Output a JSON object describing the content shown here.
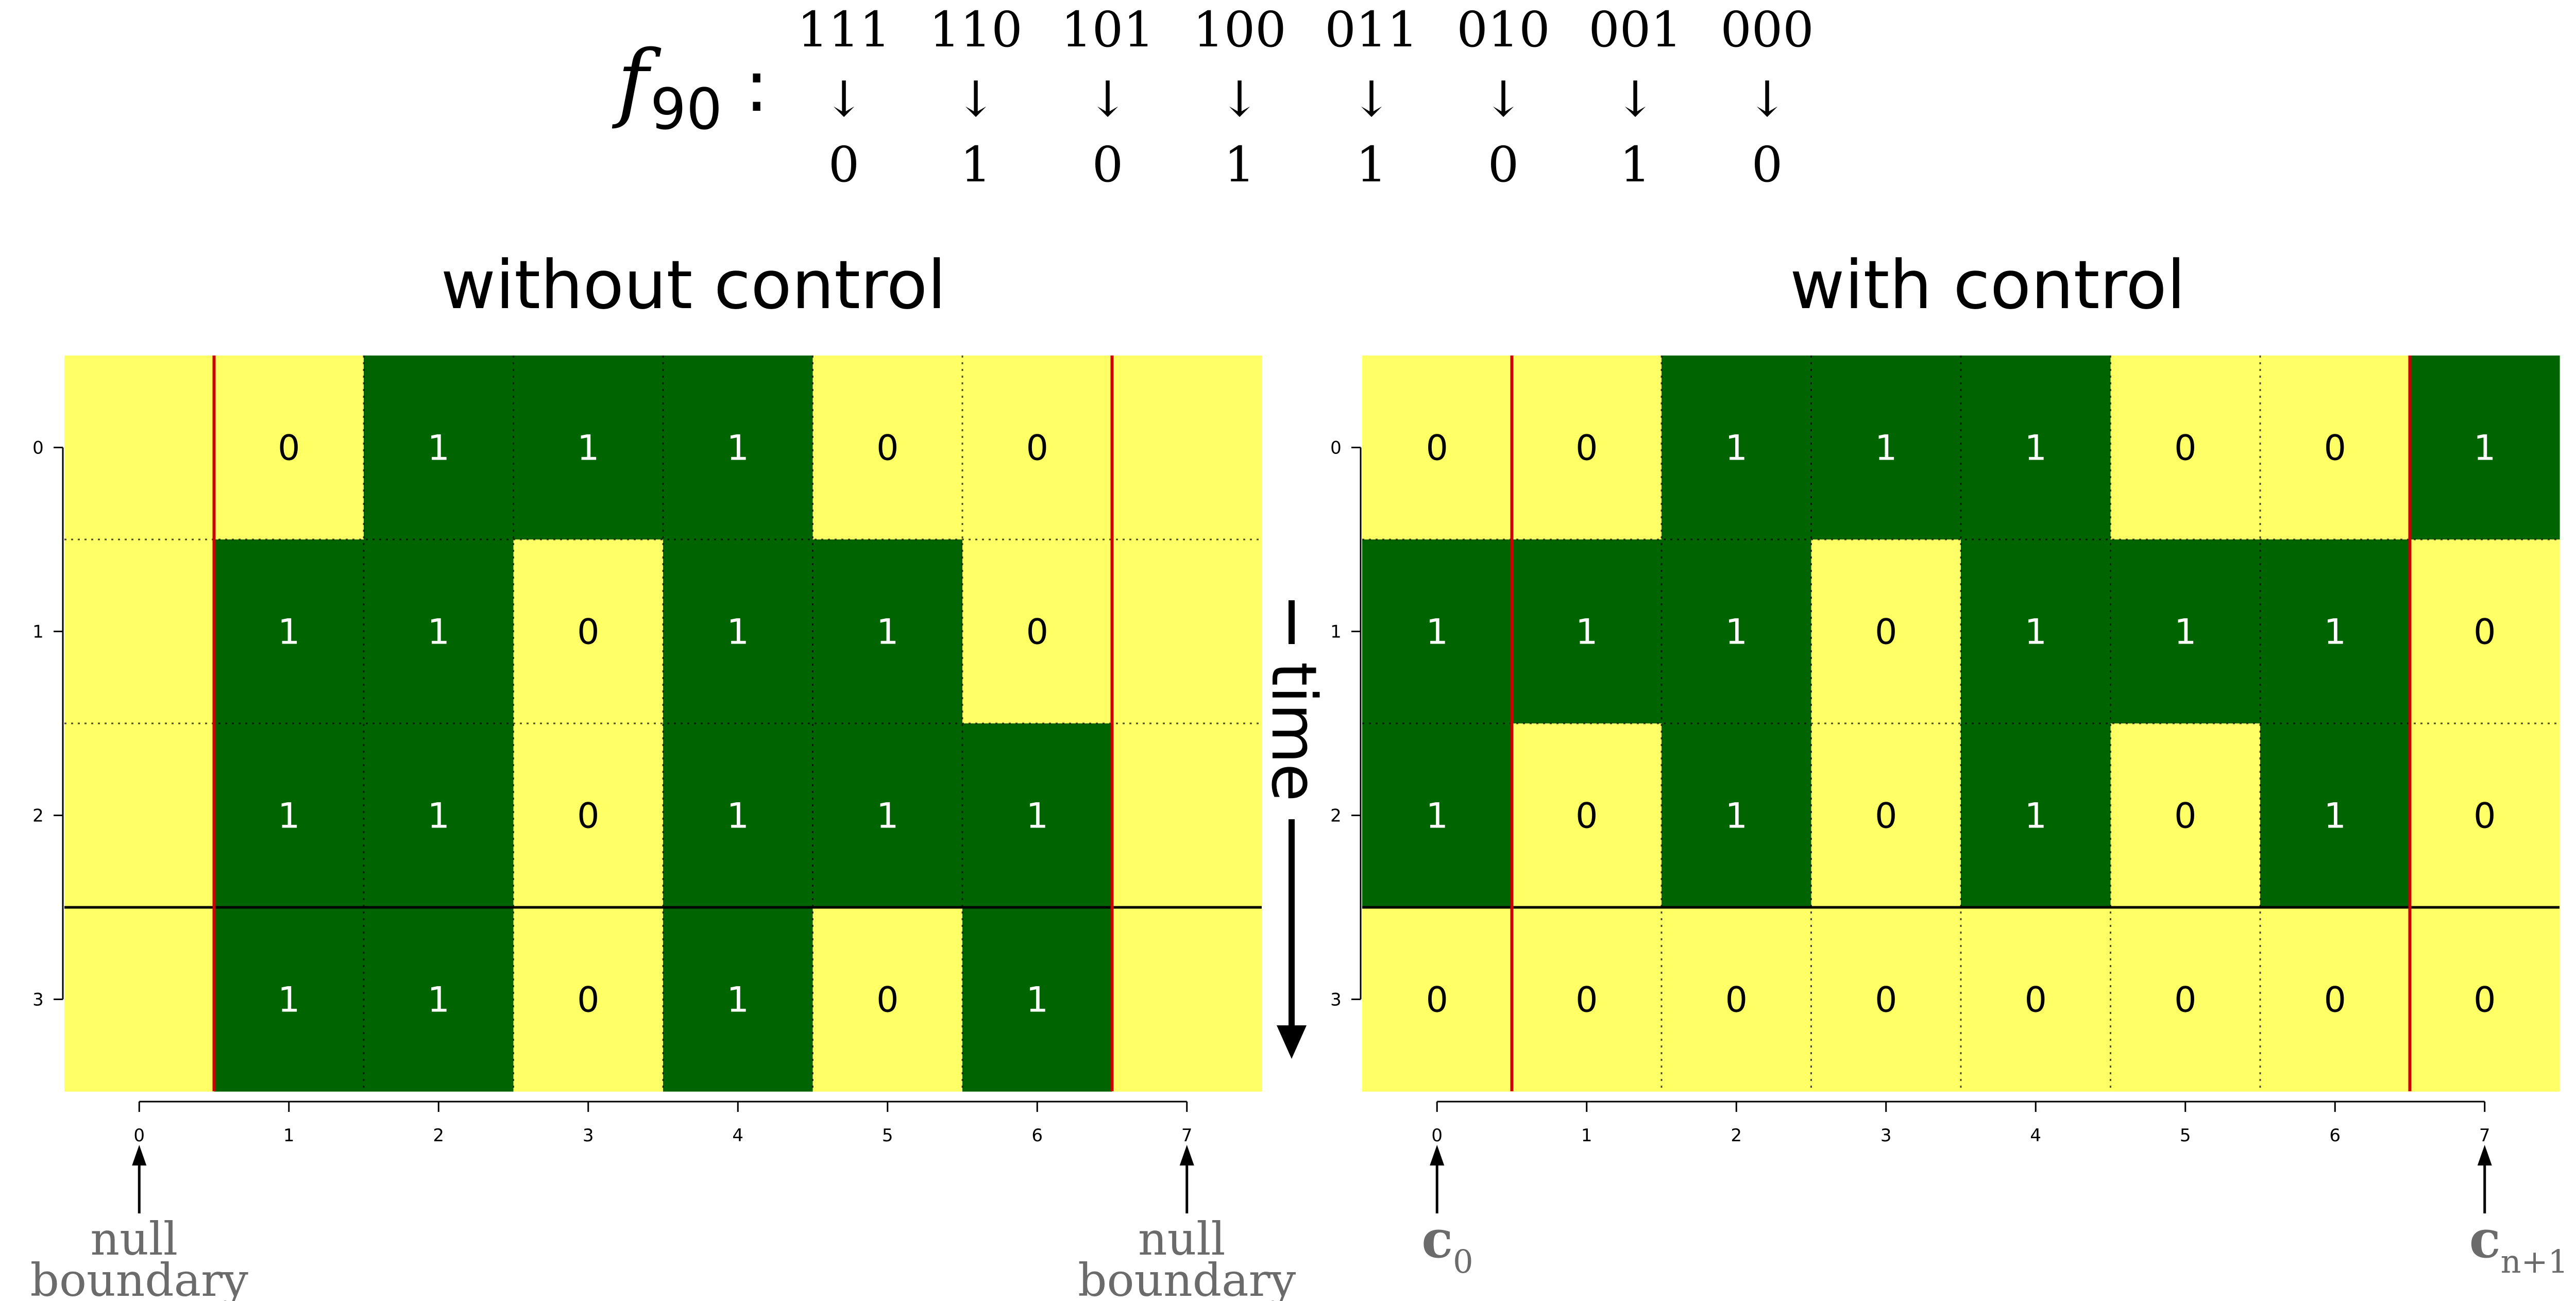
{
  "rule": {
    "name": "f",
    "subscript": "90",
    "colon": ":",
    "arrow": "↓",
    "neighborhoods": [
      "111",
      "110",
      "101",
      "100",
      "011",
      "010",
      "001",
      "000"
    ],
    "outputs": [
      "0",
      "1",
      "0",
      "1",
      "1",
      "0",
      "1",
      "0"
    ]
  },
  "colors": {
    "cell_zero": "#FFFF66",
    "cell_one": "#006400",
    "boundary_line": "#CC0000",
    "annotation_text": "#6b6b6b"
  },
  "time_label": "time",
  "chart_data": [
    {
      "type": "heatmap",
      "title": "without control",
      "x_ticks": [
        "0",
        "1",
        "2",
        "3",
        "4",
        "5",
        "6",
        "7"
      ],
      "y_ticks": [
        "0",
        "1",
        "2",
        "3"
      ],
      "cells": [
        [
          null,
          0,
          1,
          1,
          1,
          0,
          0,
          null
        ],
        [
          null,
          1,
          1,
          0,
          1,
          1,
          0,
          null
        ],
        [
          null,
          1,
          1,
          0,
          1,
          1,
          1,
          null
        ],
        [
          null,
          1,
          1,
          0,
          1,
          0,
          1,
          null
        ]
      ],
      "boundary_annotations": {
        "left": [
          "null",
          "boundary"
        ],
        "right": [
          "null",
          "boundary"
        ]
      }
    },
    {
      "type": "heatmap",
      "title": "with control",
      "x_ticks": [
        "0",
        "1",
        "2",
        "3",
        "4",
        "5",
        "6",
        "7"
      ],
      "y_ticks": [
        "0",
        "1",
        "2",
        "3"
      ],
      "cells": [
        [
          0,
          0,
          1,
          1,
          1,
          0,
          0,
          1
        ],
        [
          1,
          1,
          1,
          0,
          1,
          1,
          1,
          0
        ],
        [
          1,
          0,
          1,
          0,
          1,
          0,
          1,
          0
        ],
        [
          0,
          0,
          0,
          0,
          0,
          0,
          0,
          0
        ]
      ],
      "boundary_annotations": {
        "left": {
          "symbol": "c",
          "sub": "0"
        },
        "right": {
          "symbol": "c",
          "sub": "n+1"
        }
      }
    }
  ]
}
